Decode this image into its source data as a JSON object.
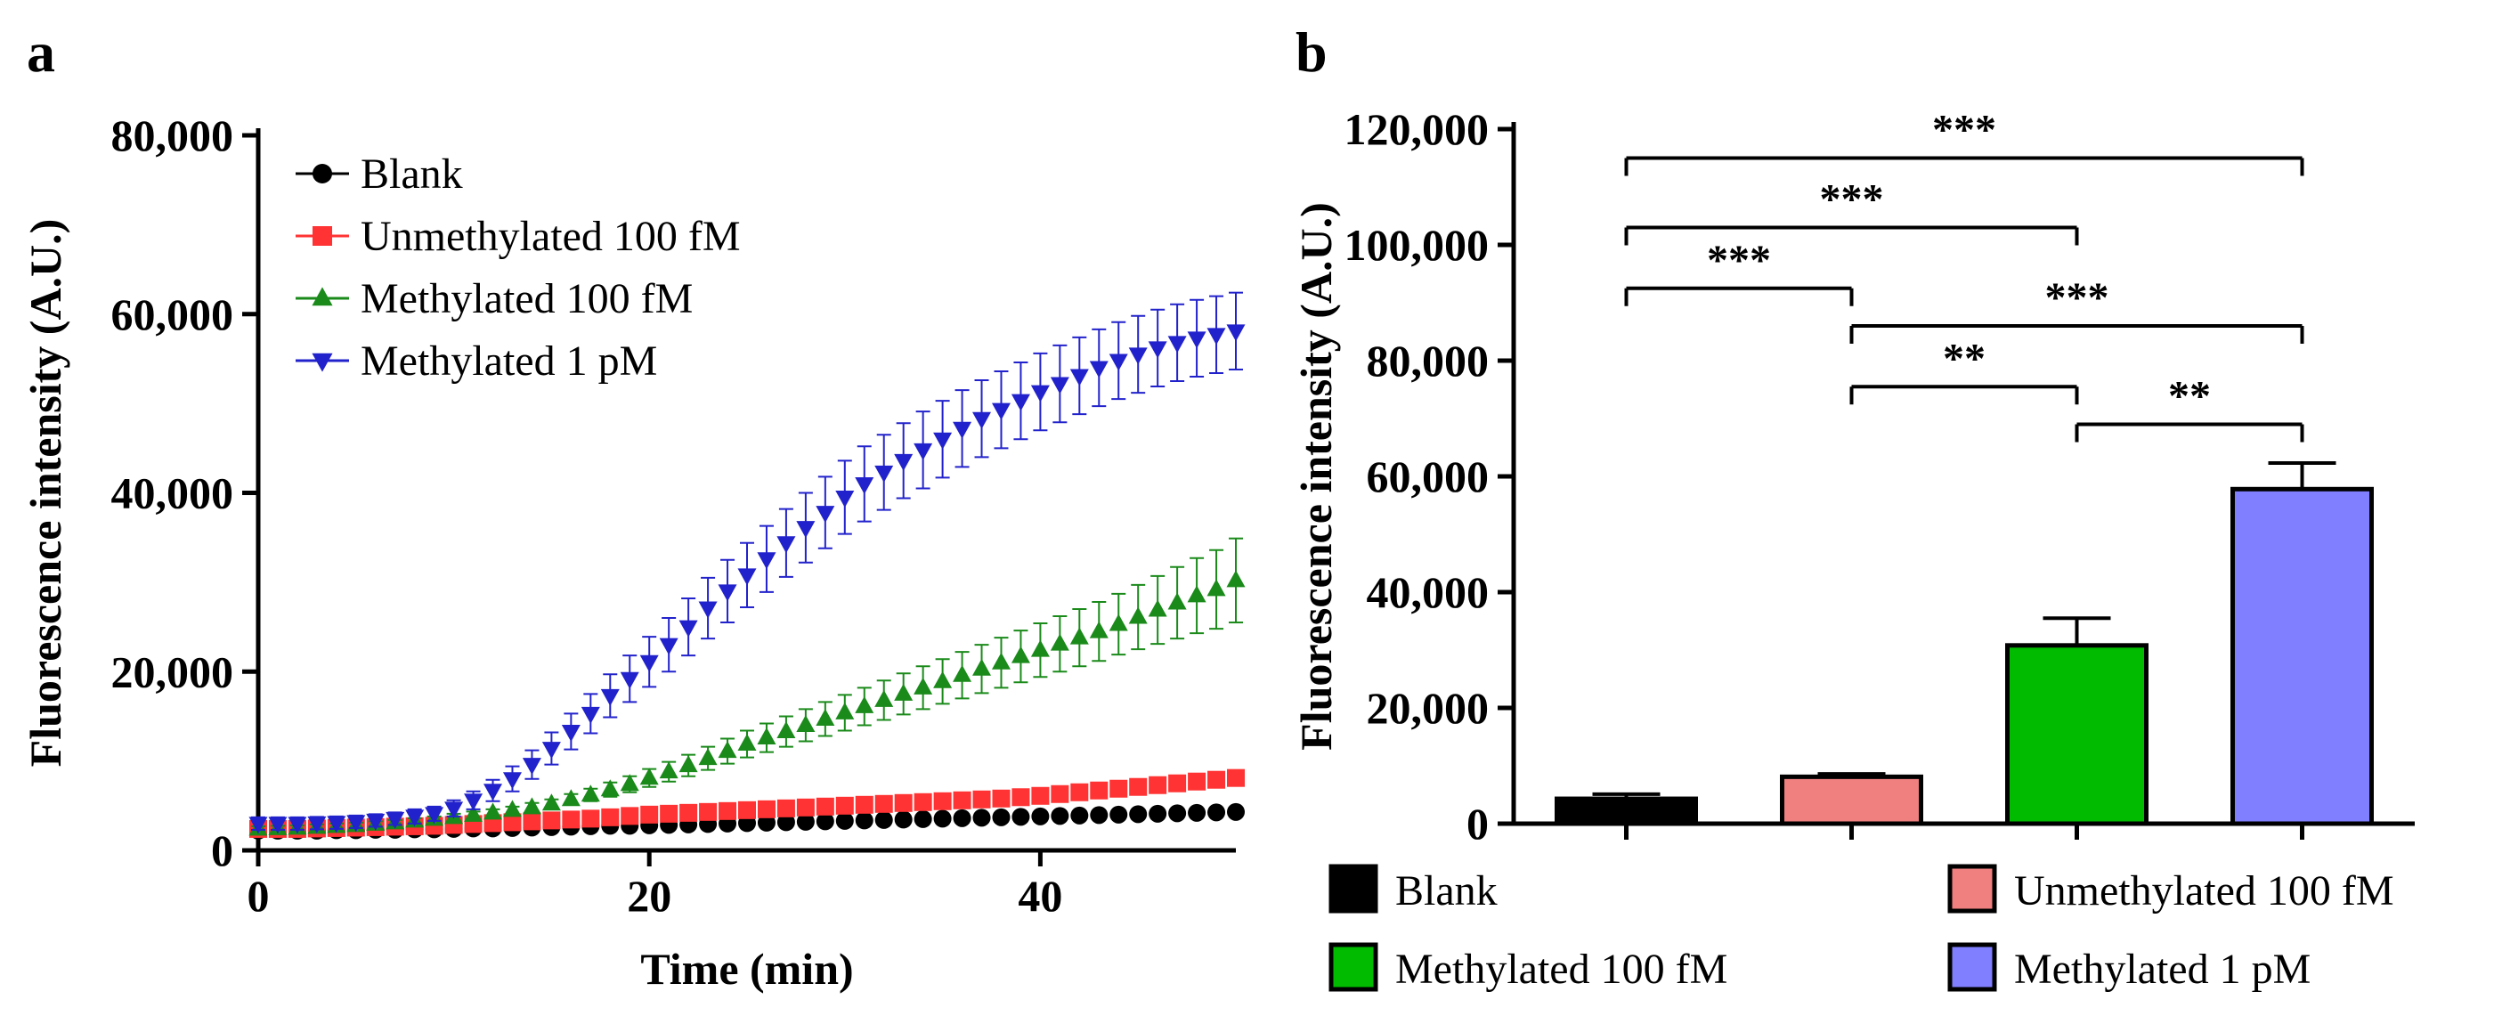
{
  "chart_data": [
    {
      "panel_label": "a",
      "type": "scatter",
      "xlabel": "Time (min)",
      "ylabel": "Fluorescence intensity (A.U.)",
      "xlim": [
        0,
        50
      ],
      "ylim": [
        0,
        80000
      ],
      "x_ticks": [
        0,
        20,
        40
      ],
      "x_tick_labels": [
        "0",
        "20",
        "40"
      ],
      "y_ticks": [
        0,
        20000,
        40000,
        60000,
        80000
      ],
      "y_tick_labels": [
        "0",
        "20,000",
        "40,000",
        "60,000",
        "80,000"
      ],
      "legend_position": "top-left",
      "series": [
        {
          "name": "Blank",
          "color": "#000000",
          "marker": "circle",
          "x": [
            0,
            1,
            2,
            3,
            4,
            5,
            6,
            7,
            8,
            9,
            10,
            11,
            12,
            13,
            14,
            15,
            16,
            17,
            18,
            19,
            20,
            21,
            22,
            23,
            24,
            25,
            26,
            27,
            28,
            29,
            30,
            31,
            32,
            33,
            34,
            35,
            36,
            37,
            38,
            39,
            40,
            41,
            42,
            43,
            44,
            45,
            46,
            47,
            48,
            49,
            50
          ],
          "y": [
            2200,
            2200,
            2200,
            2200,
            2250,
            2250,
            2300,
            2300,
            2350,
            2350,
            2400,
            2450,
            2450,
            2500,
            2550,
            2600,
            2650,
            2700,
            2750,
            2750,
            2800,
            2850,
            2900,
            2950,
            3000,
            3050,
            3100,
            3150,
            3200,
            3250,
            3300,
            3350,
            3400,
            3450,
            3500,
            3550,
            3600,
            3650,
            3700,
            3750,
            3800,
            3850,
            3900,
            3950,
            4000,
            4050,
            4100,
            4150,
            4200,
            4250,
            4300
          ],
          "err": [
            200,
            200,
            200,
            200,
            200,
            200,
            200,
            200,
            200,
            200,
            200,
            200,
            200,
            200,
            200,
            200,
            200,
            200,
            200,
            200,
            200,
            200,
            200,
            200,
            200,
            200,
            200,
            200,
            200,
            200,
            200,
            200,
            200,
            200,
            200,
            200,
            200,
            200,
            200,
            200,
            200,
            200,
            200,
            200,
            200,
            200,
            200,
            200,
            200,
            200,
            200
          ]
        },
        {
          "name": "Unmethylated 100 fM",
          "color": "#ff3333",
          "marker": "square",
          "x": [
            0,
            1,
            2,
            3,
            4,
            5,
            6,
            7,
            8,
            9,
            10,
            11,
            12,
            13,
            14,
            15,
            16,
            17,
            18,
            19,
            20,
            21,
            22,
            23,
            24,
            25,
            26,
            27,
            28,
            29,
            30,
            31,
            32,
            33,
            34,
            35,
            36,
            37,
            38,
            39,
            40,
            41,
            42,
            43,
            44,
            45,
            46,
            47,
            48,
            49,
            50
          ],
          "y": [
            2400,
            2400,
            2400,
            2450,
            2500,
            2550,
            2600,
            2650,
            2700,
            2750,
            2850,
            2950,
            3050,
            3150,
            3250,
            3350,
            3450,
            3550,
            3700,
            3850,
            4000,
            4100,
            4200,
            4300,
            4400,
            4500,
            4600,
            4700,
            4800,
            4900,
            5000,
            5100,
            5200,
            5300,
            5400,
            5500,
            5600,
            5700,
            5800,
            5950,
            6100,
            6300,
            6500,
            6700,
            6900,
            7100,
            7300,
            7500,
            7700,
            7900,
            8100
          ],
          "err": [
            150,
            150,
            150,
            150,
            150,
            150,
            150,
            150,
            150,
            150,
            200,
            200,
            200,
            200,
            200,
            250,
            250,
            250,
            250,
            250,
            300,
            300,
            300,
            300,
            300,
            350,
            350,
            350,
            350,
            350,
            400,
            400,
            400,
            400,
            400,
            450,
            450,
            450,
            450,
            450,
            500,
            500,
            500,
            500,
            500,
            550,
            550,
            550,
            550,
            550,
            600
          ]
        },
        {
          "name": "Methylated 100 fM",
          "color": "#1a8a1a",
          "marker": "triangle-up",
          "x": [
            0,
            1,
            2,
            3,
            4,
            5,
            6,
            7,
            8,
            9,
            10,
            11,
            12,
            13,
            14,
            15,
            16,
            17,
            18,
            19,
            20,
            21,
            22,
            23,
            24,
            25,
            26,
            27,
            28,
            29,
            30,
            31,
            32,
            33,
            34,
            35,
            36,
            37,
            38,
            39,
            40,
            41,
            42,
            43,
            44,
            45,
            46,
            47,
            48,
            49,
            50
          ],
          "y": [
            2400,
            2450,
            2500,
            2600,
            2700,
            2800,
            2950,
            3100,
            3300,
            3500,
            3700,
            3950,
            4200,
            4500,
            4800,
            5200,
            5700,
            6200,
            6800,
            7400,
            8100,
            8800,
            9500,
            10300,
            11100,
            11900,
            12600,
            13300,
            14000,
            14700,
            15400,
            16100,
            16800,
            17500,
            18200,
            18900,
            19600,
            20300,
            21000,
            21700,
            22400,
            23100,
            23800,
            24500,
            25300,
            26100,
            26900,
            27700,
            28500,
            29200,
            30200
          ],
          "err": [
            300,
            300,
            300,
            300,
            300,
            300,
            300,
            300,
            300,
            300,
            400,
            400,
            400,
            400,
            500,
            500,
            600,
            700,
            800,
            900,
            1000,
            1100,
            1200,
            1300,
            1400,
            1500,
            1600,
            1700,
            1800,
            1900,
            2000,
            2100,
            2200,
            2300,
            2400,
            2500,
            2600,
            2700,
            2800,
            2900,
            3000,
            3100,
            3200,
            3300,
            3400,
            3600,
            3800,
            4000,
            4200,
            4400,
            4700
          ]
        },
        {
          "name": "Methylated 1 pM",
          "color": "#2222cc",
          "marker": "triangle-down",
          "x": [
            0,
            1,
            2,
            3,
            4,
            5,
            6,
            7,
            8,
            9,
            10,
            11,
            12,
            13,
            14,
            15,
            16,
            17,
            18,
            19,
            20,
            21,
            22,
            23,
            24,
            25,
            26,
            27,
            28,
            29,
            30,
            31,
            32,
            33,
            34,
            35,
            36,
            37,
            38,
            39,
            40,
            41,
            42,
            43,
            44,
            45,
            46,
            47,
            48,
            49,
            50
          ],
          "y": [
            3000,
            3000,
            3000,
            3050,
            3100,
            3200,
            3350,
            3550,
            3800,
            4100,
            4700,
            5600,
            6700,
            8000,
            9600,
            11400,
            13300,
            15300,
            17300,
            19200,
            21100,
            23000,
            25000,
            27100,
            29000,
            30800,
            32600,
            34400,
            36100,
            37800,
            39500,
            41000,
            42300,
            43600,
            44800,
            46000,
            47200,
            48300,
            49300,
            50300,
            51300,
            52200,
            53100,
            54000,
            54800,
            55500,
            56200,
            56800,
            57300,
            57700,
            58100
          ],
          "err": [
            700,
            700,
            700,
            700,
            700,
            700,
            700,
            700,
            800,
            800,
            900,
            1000,
            1200,
            1400,
            1600,
            1800,
            2000,
            2200,
            2400,
            2600,
            2800,
            3000,
            3200,
            3400,
            3500,
            3600,
            3700,
            3800,
            3900,
            4000,
            4100,
            4200,
            4200,
            4200,
            4300,
            4300,
            4300,
            4300,
            4300,
            4300,
            4300,
            4300,
            4300,
            4300,
            4300,
            4300,
            4300,
            4300,
            4300,
            4300,
            4300
          ]
        }
      ]
    },
    {
      "panel_label": "b",
      "type": "bar",
      "ylabel": "Fluorescence intensity (A.U.)",
      "ylim": [
        0,
        120000
      ],
      "y_ticks": [
        0,
        20000,
        40000,
        60000,
        80000,
        100000,
        120000
      ],
      "y_tick_labels": [
        "0",
        "20,000",
        "40,000",
        "60,000",
        "80,000",
        "100,000",
        "120,000"
      ],
      "categories": [
        "Blank",
        "Unmethylated 100 fM",
        "Methylated 100 fM",
        "Methylated 1 pM"
      ],
      "values": [
        4300,
        8100,
        30800,
        57800
      ],
      "errors": [
        800,
        500,
        4700,
        4500
      ],
      "colors": [
        "#000000",
        "#f08080",
        "#00bb00",
        "#7f7fff"
      ],
      "legend_position": "bottom",
      "significance": [
        {
          "from": 0,
          "to": 3,
          "label": "***",
          "y": 115000
        },
        {
          "from": 0,
          "to": 2,
          "label": "***",
          "y": 103000
        },
        {
          "from": 0,
          "to": 1,
          "label": "***",
          "y": 92500
        },
        {
          "from": 1,
          "to": 3,
          "label": "***",
          "y": 86000
        },
        {
          "from": 1,
          "to": 2,
          "label": "**",
          "y": 75500
        },
        {
          "from": 2,
          "to": 3,
          "label": "**",
          "y": 69000
        }
      ]
    }
  ]
}
